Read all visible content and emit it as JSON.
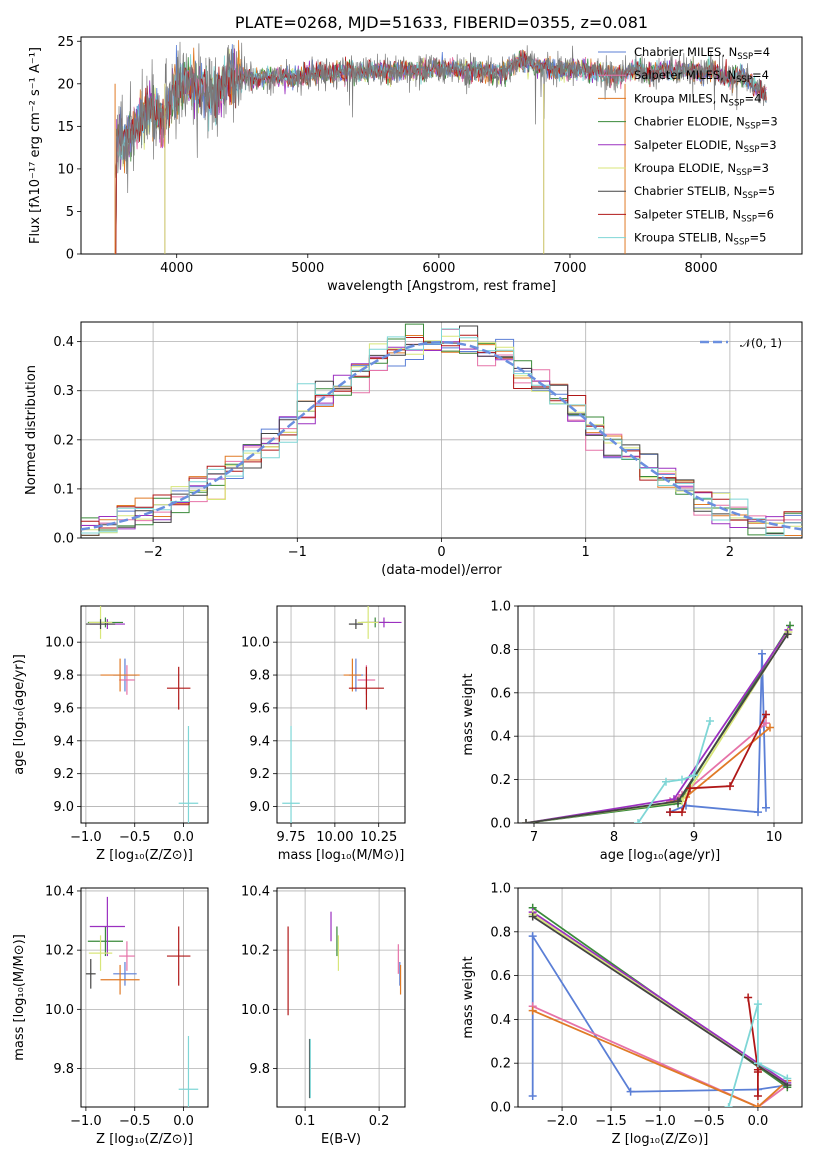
{
  "chart_data": [
    {
      "id": "spectrum",
      "type": "line",
      "title": "PLATE=0268, MJD=51633, FIBERID=0355, z=0.081",
      "xlabel": "wavelength [Angstrom, rest frame]",
      "ylabel": "Flux [fλ10⁻¹⁷ erg cm⁻² s⁻¹ A⁻¹]",
      "xlim": [
        3270,
        8770
      ],
      "ylim": [
        0,
        25.5
      ],
      "xticks": [
        4000,
        5000,
        6000,
        7000,
        8000
      ],
      "yticks": [
        0,
        5,
        10,
        15,
        20,
        25
      ],
      "grid": false,
      "legend": "right",
      "data_x": [
        3530,
        3560,
        3600,
        3700,
        3800,
        3900,
        4000,
        4100,
        4200,
        4300,
        4400,
        4500,
        4600,
        4700,
        4800,
        4900,
        5000,
        5100,
        5200,
        5300,
        5400,
        5500,
        5600,
        5700,
        5800,
        5900,
        6000,
        6100,
        6200,
        6300,
        6400,
        6500,
        6600,
        6700,
        6800,
        6900,
        7000,
        7100,
        7200,
        7300,
        7400,
        7500,
        7600,
        7700,
        7800,
        7900,
        8000,
        8100,
        8200,
        8300,
        8400,
        8500
      ],
      "data_y": [
        12,
        14,
        13,
        15,
        17,
        16,
        19.5,
        20.5,
        19,
        18.5,
        20.5,
        21,
        20.5,
        20.8,
        21,
        20.8,
        21,
        21.2,
        21.3,
        21.5,
        21.2,
        21.7,
        21.5,
        21.6,
        21.6,
        21.6,
        21.8,
        21.8,
        21.4,
        21.5,
        21.3,
        21.6,
        22.5,
        22.3,
        22,
        21.5,
        21.6,
        21.8,
        21.4,
        21,
        21,
        21.8,
        21.2,
        21.6,
        21.4,
        21.5,
        21.3,
        21.6,
        20.5,
        21,
        20,
        18.5
      ],
      "series": [
        {
          "name": "Chabrier MILES, N_SSP=4",
          "label_main": "Chabrier MILES, N",
          "label_sub": "SSP",
          "label_end": "=4",
          "color": "#5b7fd6"
        },
        {
          "name": "Salpeter MILES, N_SSP=4",
          "label_main": "Salpeter MILES, N",
          "label_sub": "SSP",
          "label_end": "=4",
          "color": "#e673a8"
        },
        {
          "name": "Kroupa MILES, N_SSP=4",
          "label_main": "Kroupa MILES, N",
          "label_sub": "SSP",
          "label_end": "=4",
          "color": "#e07a26"
        },
        {
          "name": "Chabrier ELODIE, N_SSP=3",
          "label_main": "Chabrier ELODIE, N",
          "label_sub": "SSP",
          "label_end": "=3",
          "color": "#3a8a3a"
        },
        {
          "name": "Salpeter ELODIE, N_SSP=3",
          "label_main": "Salpeter ELODIE, N",
          "label_sub": "SSP",
          "label_end": "=3",
          "color": "#9b30c0"
        },
        {
          "name": "Kroupa ELODIE, N_SSP=3",
          "label_main": "Kroupa ELODIE, N",
          "label_sub": "SSP",
          "label_end": "=3",
          "color": "#d8e67a"
        },
        {
          "name": "Chabrier STELIB, N_SSP=5",
          "label_main": "Chabrier STELIB, N",
          "label_sub": "SSP",
          "label_end": "=5",
          "color": "#444444"
        },
        {
          "name": "Salpeter STELIB, N_SSP=6",
          "label_main": "Salpeter STELIB, N",
          "label_sub": "SSP",
          "label_end": "=6",
          "color": "#b01818"
        },
        {
          "name": "Kroupa STELIB, N_SSP=5",
          "label_main": "Kroupa STELIB, N",
          "label_sub": "SSP",
          "label_end": "=5",
          "color": "#7fd6d6"
        }
      ]
    },
    {
      "id": "residuals",
      "type": "line",
      "xlabel": "(data-model)/error",
      "ylabel": "Normed distribution",
      "xlim": [
        -2.5,
        2.5
      ],
      "ylim": [
        0,
        0.44
      ],
      "xticks": [
        -2,
        -1,
        0,
        1,
        2
      ],
      "yticks": [
        0.0,
        0.1,
        0.2,
        0.3,
        0.4
      ],
      "grid": true,
      "legend": "top-right",
      "gaussian": {
        "label": "𝒩(0, 1)",
        "color": "#6a8fdf"
      }
    },
    {
      "id": "z-age",
      "type": "scatter",
      "xlabel": "Z [log₁₀(Z/Z⊙)]",
      "ylabel": "age  [log₁₀(age/yr)]",
      "xlim": [
        -1.05,
        0.25
      ],
      "ylim": [
        8.9,
        10.22
      ],
      "xticks": [
        -1.0,
        -0.5,
        0.0
      ],
      "yticks": [
        9.0,
        9.2,
        9.4,
        9.6,
        9.8,
        10.0
      ],
      "grid": true,
      "points": [
        {
          "x": -0.6,
          "y": 9.8,
          "xerr": 0.12,
          "yerr": 0.1,
          "color": "#5b7fd6"
        },
        {
          "x": -0.58,
          "y": 9.77,
          "xerr": 0.08,
          "yerr": 0.09,
          "color": "#e673a8"
        },
        {
          "x": -0.65,
          "y": 9.8,
          "xerr": 0.2,
          "yerr": 0.1,
          "color": "#e07a26"
        },
        {
          "x": -0.8,
          "y": 10.12,
          "xerr": 0.18,
          "yerr": 0.03,
          "color": "#3a8a3a"
        },
        {
          "x": -0.78,
          "y": 10.11,
          "xerr": 0.18,
          "yerr": 0.03,
          "color": "#9b30c0"
        },
        {
          "x": -0.85,
          "y": 10.12,
          "xerr": 0.12,
          "yerr": 0.1,
          "color": "#d8e67a"
        },
        {
          "x": -0.85,
          "y": 10.11,
          "xerr": 0.15,
          "yerr": 0.03,
          "color": "#444444"
        },
        {
          "x": -0.05,
          "y": 9.72,
          "xerr": 0.12,
          "yerr": 0.13,
          "color": "#b01818"
        },
        {
          "x": 0.05,
          "y": 9.02,
          "xerr": 0.1,
          "yerr": 0.47,
          "color": "#7fd6d6"
        }
      ]
    },
    {
      "id": "mass-age",
      "type": "scatter",
      "xlabel": "mass [log₁₀(M/M⊙)]",
      "ylabel": "",
      "xlim": [
        9.67,
        10.4
      ],
      "ylim": [
        8.9,
        10.22
      ],
      "xticks": [
        9.75,
        10.0,
        10.25
      ],
      "yticks": [
        9.0,
        9.2,
        9.4,
        9.6,
        9.8,
        10.0
      ],
      "grid": true,
      "points": [
        {
          "x": 10.12,
          "y": 9.8,
          "xerr": 0.04,
          "yerr": 0.1,
          "color": "#5b7fd6"
        },
        {
          "x": 10.18,
          "y": 9.77,
          "xerr": 0.05,
          "yerr": 0.09,
          "color": "#e673a8"
        },
        {
          "x": 10.1,
          "y": 9.8,
          "xerr": 0.05,
          "yerr": 0.1,
          "color": "#e07a26"
        },
        {
          "x": 10.23,
          "y": 10.12,
          "xerr": 0.08,
          "yerr": 0.03,
          "color": "#3a8a3a"
        },
        {
          "x": 10.28,
          "y": 10.12,
          "xerr": 0.1,
          "yerr": 0.03,
          "color": "#9b30c0"
        },
        {
          "x": 10.19,
          "y": 10.12,
          "xerr": 0.06,
          "yerr": 0.1,
          "color": "#d8e67a"
        },
        {
          "x": 10.12,
          "y": 10.11,
          "xerr": 0.04,
          "yerr": 0.03,
          "color": "#444444"
        },
        {
          "x": 10.18,
          "y": 9.72,
          "xerr": 0.1,
          "yerr": 0.13,
          "color": "#b01818"
        },
        {
          "x": 9.75,
          "y": 9.02,
          "xerr": 0.05,
          "yerr": 0.47,
          "color": "#7fd6d6"
        }
      ]
    },
    {
      "id": "age-weight",
      "type": "line",
      "xlabel": "age  [log₁₀(age/yr)]",
      "ylabel": "mass weight",
      "xlim": [
        6.8,
        10.35
      ],
      "ylim": [
        0,
        1
      ],
      "xticks": [
        7,
        8,
        9,
        10
      ],
      "yticks": [
        0.0,
        0.2,
        0.4,
        0.6,
        0.8,
        1.0
      ],
      "grid": true,
      "series": [
        {
          "color": "#5b7fd6",
          "x": [
            8.7,
            8.9,
            9.8,
            9.85,
            9.9
          ],
          "y": [
            0.05,
            0.08,
            0.05,
            0.78,
            0.07
          ]
        },
        {
          "color": "#e673a8",
          "x": [
            8.7,
            8.85,
            9.9
          ],
          "y": [
            0.1,
            0.13,
            0.46
          ]
        },
        {
          "color": "#e07a26",
          "x": [
            8.75,
            8.9,
            9.95
          ],
          "y": [
            0.1,
            0.12,
            0.44
          ]
        },
        {
          "color": "#3a8a3a",
          "x": [
            6.9,
            8.8,
            10.2
          ],
          "y": [
            0.0,
            0.09,
            0.91
          ]
        },
        {
          "color": "#9b30c0",
          "x": [
            6.9,
            8.75,
            10.18
          ],
          "y": [
            0.0,
            0.11,
            0.89
          ]
        },
        {
          "color": "#d8e67a",
          "x": [
            6.9,
            8.85,
            10.18
          ],
          "y": [
            0.0,
            0.1,
            0.88
          ]
        },
        {
          "color": "#444444",
          "x": [
            6.9,
            8.8,
            10.17
          ],
          "y": [
            0.0,
            0.1,
            0.87
          ]
        },
        {
          "color": "#b01818",
          "x": [
            8.7,
            8.85,
            8.95,
            9.45,
            9.9
          ],
          "y": [
            0.05,
            0.05,
            0.16,
            0.17,
            0.5
          ]
        },
        {
          "color": "#7fd6d6",
          "x": [
            8.3,
            8.65,
            8.85,
            9.0,
            9.2
          ],
          "y": [
            0.0,
            0.19,
            0.2,
            0.22,
            0.47
          ]
        }
      ]
    },
    {
      "id": "z-mass",
      "type": "scatter",
      "xlabel": "Z [log₁₀(Z/Z⊙)]",
      "ylabel": "mass [log₁₀(M/M⊙)]",
      "xlim": [
        -1.05,
        0.25
      ],
      "ylim": [
        9.67,
        10.41
      ],
      "xticks": [
        -1.0,
        -0.5,
        0.0
      ],
      "yticks": [
        9.8,
        10.0,
        10.2,
        10.4
      ],
      "grid": true,
      "points": [
        {
          "x": -0.6,
          "y": 10.12,
          "xerr": 0.12,
          "yerr": 0.04,
          "color": "#5b7fd6"
        },
        {
          "x": -0.58,
          "y": 10.18,
          "xerr": 0.08,
          "yerr": 0.05,
          "color": "#e673a8"
        },
        {
          "x": -0.65,
          "y": 10.1,
          "xerr": 0.2,
          "yerr": 0.05,
          "color": "#e07a26"
        },
        {
          "x": -0.8,
          "y": 10.23,
          "xerr": 0.18,
          "yerr": 0.05,
          "color": "#3a8a3a"
        },
        {
          "x": -0.78,
          "y": 10.28,
          "xerr": 0.18,
          "yerr": 0.1,
          "color": "#9b30c0"
        },
        {
          "x": -0.85,
          "y": 10.19,
          "xerr": 0.12,
          "yerr": 0.06,
          "color": "#d8e67a"
        },
        {
          "x": -0.95,
          "y": 10.12,
          "xerr": 0.05,
          "yerr": 0.05,
          "color": "#444444"
        },
        {
          "x": -0.05,
          "y": 10.18,
          "xerr": 0.12,
          "yerr": 0.1,
          "color": "#b01818"
        },
        {
          "x": 0.05,
          "y": 9.73,
          "xerr": 0.1,
          "yerr": 0.18,
          "color": "#7fd6d6"
        }
      ]
    },
    {
      "id": "ebv-mass",
      "type": "scatter",
      "xlabel": "E(B-V)",
      "ylabel": "",
      "xlim": [
        0.062,
        0.235
      ],
      "ylim": [
        9.67,
        10.41
      ],
      "xticks": [
        0.1,
        0.2
      ],
      "yticks": [
        9.8,
        10.0,
        10.2,
        10.4
      ],
      "grid": true,
      "points": [
        {
          "x": 0.228,
          "y": 10.12,
          "yerr": 0.04,
          "color": "#5b7fd6"
        },
        {
          "x": 0.226,
          "y": 10.17,
          "yerr": 0.05,
          "color": "#e673a8"
        },
        {
          "x": 0.229,
          "y": 10.1,
          "yerr": 0.05,
          "color": "#e07a26"
        },
        {
          "x": 0.143,
          "y": 10.23,
          "yerr": 0.05,
          "color": "#3a8a3a"
        },
        {
          "x": 0.135,
          "y": 10.28,
          "yerr": 0.05,
          "color": "#9b30c0"
        },
        {
          "x": 0.145,
          "y": 10.19,
          "yerr": 0.06,
          "color": "#d8e67a"
        },
        {
          "x": 0.106,
          "y": 9.8,
          "yerr": 0.1,
          "color": "#444444"
        },
        {
          "x": 0.077,
          "y": 10.13,
          "yerr": 0.15,
          "color": "#b01818"
        },
        {
          "x": 0.107,
          "y": 9.8,
          "yerr": 0.1,
          "color": "#7fd6d6"
        }
      ]
    },
    {
      "id": "z-weight",
      "type": "line",
      "xlabel": "Z [log₁₀(Z/Z⊙)]",
      "ylabel": "mass weight",
      "xlim": [
        -2.45,
        0.45
      ],
      "ylim": [
        0,
        1
      ],
      "xticks": [
        -2.0,
        -1.5,
        -1.0,
        -0.5,
        0.0
      ],
      "yticks": [
        0.0,
        0.2,
        0.4,
        0.6,
        0.8,
        1.0
      ],
      "grid": true,
      "series": [
        {
          "color": "#5b7fd6",
          "x": [
            -2.3,
            -2.3,
            -1.3,
            0.0,
            0.3
          ],
          "y": [
            0.05,
            0.78,
            0.07,
            0.08,
            0.1
          ]
        },
        {
          "color": "#e673a8",
          "x": [
            -2.3,
            0.0,
            0.3
          ],
          "y": [
            0.46,
            0.0,
            0.1
          ]
        },
        {
          "color": "#e07a26",
          "x": [
            -2.3,
            0.0,
            0.3
          ],
          "y": [
            0.44,
            0.0,
            0.12
          ]
        },
        {
          "color": "#3a8a3a",
          "x": [
            -2.3,
            0.3
          ],
          "y": [
            0.91,
            0.09
          ]
        },
        {
          "color": "#9b30c0",
          "x": [
            -2.3,
            0.3
          ],
          "y": [
            0.89,
            0.11
          ]
        },
        {
          "color": "#d8e67a",
          "x": [
            -2.3,
            0.3
          ],
          "y": [
            0.88,
            0.1
          ]
        },
        {
          "color": "#444444",
          "x": [
            -2.3,
            0.3
          ],
          "y": [
            0.87,
            0.1
          ]
        },
        {
          "color": "#b01818",
          "x": [
            -0.1,
            0.0,
            0.0,
            0.0
          ],
          "y": [
            0.5,
            0.17,
            0.16,
            0.05
          ]
        },
        {
          "color": "#7fd6d6",
          "x": [
            -0.3,
            0.0,
            0.0,
            0.3
          ],
          "y": [
            0.0,
            0.47,
            0.2,
            0.13
          ]
        }
      ]
    }
  ]
}
